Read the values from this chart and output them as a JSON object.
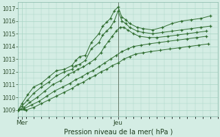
{
  "background_color": "#d4ede4",
  "grid_color": "#a8d4c4",
  "line_color": "#2d6b2d",
  "ylim": [
    1008.7,
    1017.5
  ],
  "xlim": [
    0,
    100
  ],
  "xlabel": "Pression niveau de la mer( hPa )",
  "xtick_positions": [
    2,
    52
  ],
  "xtick_labels": [
    "Mer",
    "Jeu"
  ],
  "vline_x": 52,
  "series": [
    {
      "x": [
        0,
        2,
        5,
        8,
        12,
        16,
        20,
        24,
        28,
        30,
        32,
        35,
        38,
        42,
        44,
        46,
        48,
        50,
        52,
        54,
        56,
        58,
        62,
        65,
        70,
        75,
        80,
        85,
        90,
        95,
        100
      ],
      "y": [
        1009.0,
        1009.5,
        1010.2,
        1010.8,
        1011.1,
        1011.6,
        1012.1,
        1012.2,
        1012.5,
        1012.9,
        1013.2,
        1013.3,
        1014.3,
        1015.0,
        1015.6,
        1015.9,
        1016.2,
        1016.8,
        1017.1,
        1016.3,
        1016.1,
        1015.8,
        1015.5,
        1015.4,
        1015.3,
        1015.5,
        1015.8,
        1016.0,
        1016.1,
        1016.2,
        1016.4
      ]
    },
    {
      "x": [
        0,
        2,
        5,
        8,
        12,
        16,
        20,
        24,
        28,
        30,
        32,
        35,
        38,
        42,
        44,
        46,
        48,
        50,
        52,
        54,
        56,
        58,
        62,
        65,
        70,
        75,
        80,
        85,
        90,
        95,
        100
      ],
      "y": [
        1009.0,
        1009.3,
        1009.8,
        1010.3,
        1010.8,
        1011.2,
        1011.7,
        1012.0,
        1012.2,
        1012.5,
        1012.6,
        1012.9,
        1013.8,
        1014.3,
        1014.9,
        1015.2,
        1015.5,
        1016.0,
        1016.8,
        1016.0,
        1015.8,
        1015.5,
        1015.2,
        1015.1,
        1015.0,
        1015.1,
        1015.2,
        1015.3,
        1015.4,
        1015.5,
        1015.6
      ]
    },
    {
      "x": [
        0,
        3,
        6,
        10,
        14,
        18,
        22,
        26,
        29,
        31,
        34,
        37,
        40,
        43,
        45,
        47,
        49,
        51,
        53,
        55,
        57,
        60,
        63,
        68,
        72,
        78,
        83,
        88,
        93,
        98
      ],
      "y": [
        1009.0,
        1009.2,
        1009.6,
        1010.0,
        1010.5,
        1011.0,
        1011.3,
        1011.8,
        1012.0,
        1012.2,
        1012.4,
        1012.7,
        1013.0,
        1013.5,
        1014.0,
        1014.4,
        1014.8,
        1015.2,
        1015.5,
        1015.5,
        1015.3,
        1015.0,
        1014.8,
        1014.7,
        1014.7,
        1014.8,
        1014.9,
        1015.0,
        1015.1,
        1015.2
      ]
    },
    {
      "x": [
        0,
        3,
        7,
        11,
        15,
        19,
        23,
        27,
        30,
        33,
        36,
        39,
        42,
        45,
        48,
        51,
        54,
        57,
        60,
        64,
        68,
        73,
        78,
        83,
        88,
        93,
        98
      ],
      "y": [
        1009.0,
        1009.1,
        1009.4,
        1009.7,
        1010.1,
        1010.5,
        1010.8,
        1011.1,
        1011.4,
        1011.6,
        1011.9,
        1012.1,
        1012.4,
        1012.7,
        1013.0,
        1013.3,
        1013.6,
        1013.8,
        1014.0,
        1014.1,
        1014.2,
        1014.3,
        1014.4,
        1014.5,
        1014.6,
        1014.7,
        1014.8
      ]
    },
    {
      "x": [
        0,
        4,
        8,
        12,
        16,
        20,
        24,
        28,
        31,
        34,
        37,
        40,
        43,
        46,
        49,
        52,
        55,
        58,
        61,
        65,
        69,
        74,
        79,
        84,
        89,
        94,
        99
      ],
      "y": [
        1009.0,
        1009.0,
        1009.2,
        1009.5,
        1009.8,
        1010.1,
        1010.4,
        1010.7,
        1011.0,
        1011.2,
        1011.5,
        1011.7,
        1012.0,
        1012.2,
        1012.5,
        1012.7,
        1013.0,
        1013.2,
        1013.4,
        1013.5,
        1013.6,
        1013.7,
        1013.8,
        1013.9,
        1014.0,
        1014.1,
        1014.2
      ]
    }
  ]
}
